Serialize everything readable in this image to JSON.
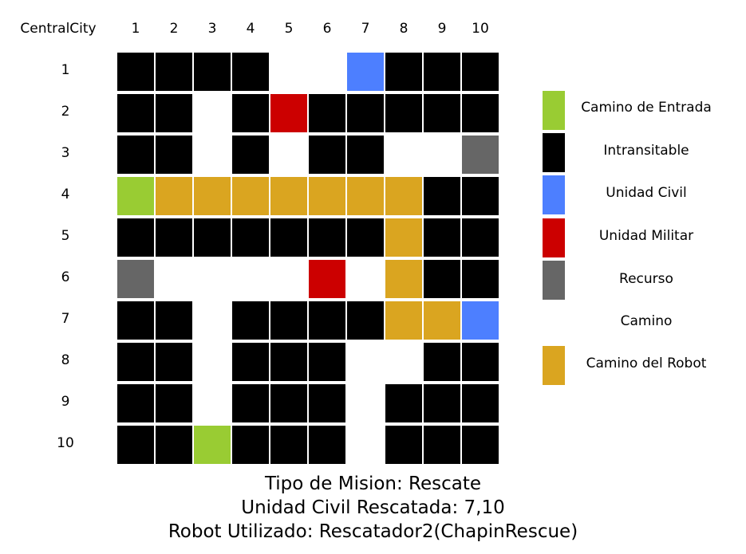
{
  "grid": {
    "corner_label": "CentralCity",
    "column_labels": [
      "1",
      "2",
      "3",
      "4",
      "5",
      "6",
      "7",
      "8",
      "9",
      "10"
    ],
    "row_labels": [
      "1",
      "2",
      "3",
      "4",
      "5",
      "6",
      "7",
      "8",
      "9",
      "10"
    ],
    "cells": [
      [
        "I",
        "I",
        "I",
        "I",
        "C",
        "C",
        "U",
        "I",
        "I",
        "I"
      ],
      [
        "I",
        "I",
        "C",
        "I",
        "M",
        "I",
        "I",
        "I",
        "I",
        "I"
      ],
      [
        "I",
        "I",
        "C",
        "I",
        "C",
        "I",
        "I",
        "C",
        "C",
        "R"
      ],
      [
        "E",
        "P",
        "P",
        "P",
        "P",
        "P",
        "P",
        "P",
        "I",
        "I"
      ],
      [
        "I",
        "I",
        "I",
        "I",
        "I",
        "I",
        "I",
        "P",
        "I",
        "I"
      ],
      [
        "R",
        "C",
        "C",
        "C",
        "C",
        "M",
        "C",
        "P",
        "I",
        "I"
      ],
      [
        "I",
        "I",
        "C",
        "I",
        "I",
        "I",
        "I",
        "P",
        "P",
        "U"
      ],
      [
        "I",
        "I",
        "C",
        "I",
        "I",
        "I",
        "C",
        "C",
        "I",
        "I"
      ],
      [
        "I",
        "I",
        "C",
        "I",
        "I",
        "I",
        "C",
        "I",
        "I",
        "I"
      ],
      [
        "I",
        "I",
        "E",
        "I",
        "I",
        "I",
        "C",
        "I",
        "I",
        "I"
      ]
    ]
  },
  "cell_colors": {
    "E": "#99cc33",
    "I": "#000000",
    "U": "#4d7fff",
    "M": "#cc0000",
    "R": "#666666",
    "C": "#ffffff",
    "P": "#daa520"
  },
  "legend": [
    {
      "key": "E",
      "label": "Camino de Entrada",
      "color": "#99cc33"
    },
    {
      "key": "I",
      "label": "Intransitable",
      "color": "#000000"
    },
    {
      "key": "U",
      "label": "Unidad Civil",
      "color": "#4d7fff"
    },
    {
      "key": "M",
      "label": "Unidad Militar",
      "color": "#cc0000"
    },
    {
      "key": "R",
      "label": "Recurso",
      "color": "#666666"
    },
    {
      "key": "C",
      "label": "Camino",
      "color": "#ffffff"
    },
    {
      "key": "P",
      "label": "Camino del Robot",
      "color": "#daa520"
    }
  ],
  "info": {
    "mission": "Tipo de Mision: Rescate",
    "rescued": "Unidad Civil Rescatada: 7,10",
    "robot": "Robot Utilizado: Rescatador2(ChapinRescue)"
  }
}
